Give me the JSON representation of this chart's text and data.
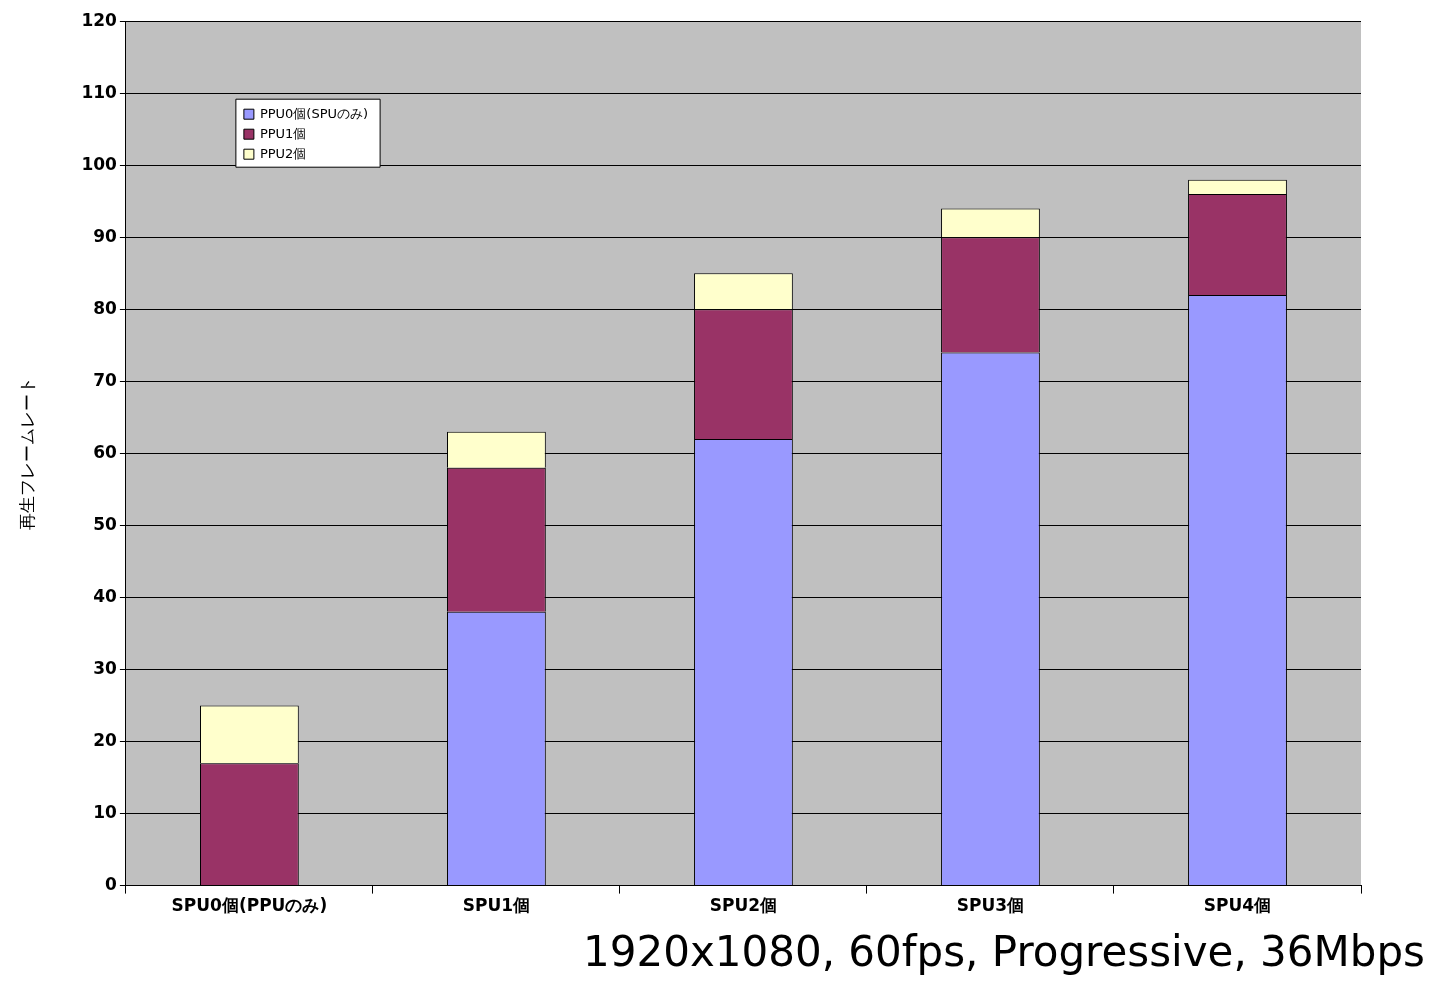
{
  "chart_data": {
    "type": "bar",
    "stacked": true,
    "ylabel": "再生フレームレート",
    "categories": [
      "SPU0個(PPUのみ)",
      "SPU1個",
      "SPU2個",
      "SPU3個",
      "SPU4個"
    ],
    "series": [
      {
        "name": "PPU0個(SPUのみ)",
        "color": "#9999ff",
        "values": [
          0,
          38,
          62,
          74,
          82
        ]
      },
      {
        "name": "PPU1個",
        "color": "#993366",
        "values": [
          17,
          20,
          18,
          16,
          14
        ]
      },
      {
        "name": "PPU2個",
        "color": "#ffffcc",
        "values": [
          8,
          5,
          5,
          4,
          2
        ]
      }
    ],
    "ylim": [
      0,
      120
    ],
    "yticks": [
      0,
      10,
      20,
      30,
      40,
      50,
      60,
      70,
      80,
      90,
      100,
      110,
      120
    ],
    "grid": "y",
    "legend": "top left",
    "annotations": [
      "1920x1080, 60fps, Progressive, 36Mbps"
    ]
  }
}
